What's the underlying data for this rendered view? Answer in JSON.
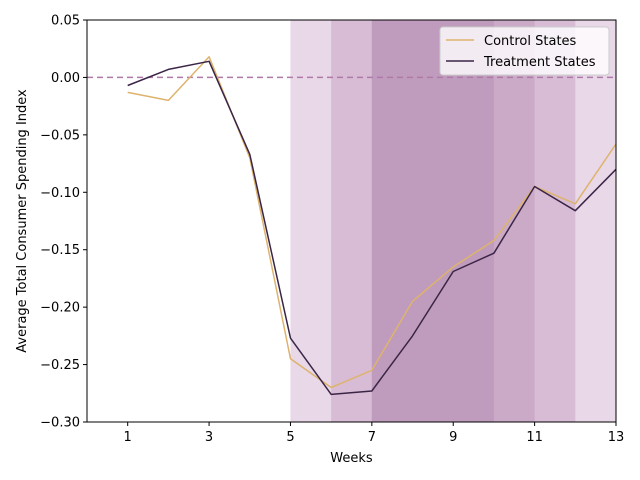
{
  "chart_data": {
    "type": "line",
    "title": "",
    "xlabel": "Weeks",
    "ylabel": "Average Total Consumer Spending Index",
    "xlim": [
      0,
      13
    ],
    "ylim": [
      -0.3,
      0.05
    ],
    "x_ticks": [
      1,
      3,
      5,
      7,
      9,
      11,
      13
    ],
    "y_ticks": [
      0.05,
      0.0,
      -0.05,
      -0.1,
      -0.15,
      -0.2,
      -0.25,
      -0.3
    ],
    "y_tick_labels": [
      "0.05",
      "0.00",
      "−0.05",
      "−0.10",
      "−0.15",
      "−0.20",
      "−0.25",
      "−0.30"
    ],
    "grid": false,
    "legend_position": "top-right",
    "reference_line": {
      "y": 0.0,
      "style": "dashed",
      "color": "#b07aa8"
    },
    "shaded_regions": [
      {
        "x0": 5,
        "x1": 13,
        "color": "#e8d8e8"
      },
      {
        "x0": 6,
        "x1": 12,
        "color": "#d8bcd6"
      },
      {
        "x0": 7,
        "x1": 11,
        "color": "#cbaac8"
      },
      {
        "x0": 7,
        "x1": 10,
        "color": "#bf9cbd"
      }
    ],
    "x": [
      1,
      2,
      3,
      4,
      5,
      6,
      7,
      8,
      9,
      10,
      11,
      12,
      13
    ],
    "series": [
      {
        "name": "Control States",
        "color": "#ddb36d",
        "values": [
          -0.013,
          -0.02,
          0.018,
          -0.07,
          -0.245,
          -0.27,
          -0.255,
          -0.195,
          -0.165,
          -0.142,
          -0.095,
          -0.11,
          -0.058
        ]
      },
      {
        "name": "Treatment States",
        "color": "#3b2547",
        "values": [
          -0.007,
          0.007,
          0.014,
          -0.067,
          -0.227,
          -0.276,
          -0.273,
          -0.225,
          -0.169,
          -0.153,
          -0.095,
          -0.116,
          -0.08
        ]
      }
    ]
  }
}
